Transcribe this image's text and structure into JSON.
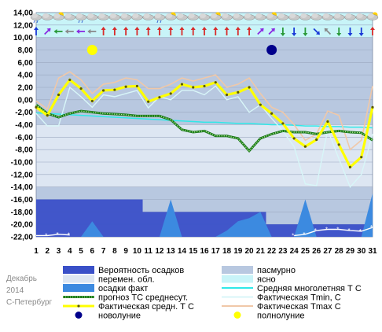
{
  "side_note": {
    "month": "Декабрь",
    "year": "2014",
    "city": "С-Петербург"
  },
  "legend": [
    {
      "key": "precip_probability",
      "label": "Вероятность осадков",
      "swatch": "rect",
      "color": "#3a50c8"
    },
    {
      "key": "overcast",
      "label": "пасмурно",
      "swatch": "rect",
      "color": "#b8c8e0"
    },
    {
      "key": "variable_cloud",
      "label": "перемен. обл.",
      "swatch": "rect",
      "color": "#dde6f2"
    },
    {
      "key": "clear",
      "label": "ясно",
      "swatch": "rect",
      "color": "#c8f4f8"
    },
    {
      "key": "precip_actual",
      "label": "осадки факт",
      "swatch": "rect",
      "color": "#3c8ae0"
    },
    {
      "key": "climate_mean",
      "label": "Средняя многолетняя Т С",
      "swatch": "line",
      "color": "#30e8e8"
    },
    {
      "key": "forecast_mean",
      "label": "прогноз ТС среднесут.",
      "swatch": "dotted",
      "color": "#1a7a1a"
    },
    {
      "key": "actual_tmin",
      "label": "Фактическая Tmin, С",
      "swatch": "line",
      "color": "#d8f6f8"
    },
    {
      "key": "actual_mean",
      "label": "Фактическая средн. Т С",
      "swatch": "yline",
      "color": "#ffff00"
    },
    {
      "key": "actual_tmax",
      "label": "Фактическая Tmax С",
      "swatch": "line",
      "color": "#f0c8a8"
    },
    {
      "key": "new_moon",
      "label": "новолуние",
      "swatch": "dot",
      "color": "#00008b"
    },
    {
      "key": "full_moon",
      "label": "полнолуние",
      "swatch": "dot",
      "color": "#ffff00"
    }
  ],
  "chart_data": {
    "type": "line",
    "x": [
      1,
      2,
      3,
      4,
      5,
      6,
      7,
      8,
      9,
      10,
      11,
      12,
      13,
      14,
      15,
      16,
      17,
      18,
      19,
      20,
      21,
      22,
      23,
      24,
      25,
      26,
      27,
      28,
      29,
      30,
      31
    ],
    "ylim": [
      -22,
      14
    ],
    "yticks": [
      14,
      12,
      10,
      8,
      6,
      4,
      2,
      0,
      -2,
      -4,
      -6,
      -8,
      -10,
      -12,
      -14,
      -16,
      -18,
      -20,
      -22
    ],
    "ytick_labels": [
      "14,00",
      "12,00",
      "10,00",
      "8,00",
      "6,00",
      "4,00",
      "2,00",
      "0,00",
      "-2,00",
      "-4,00",
      "-6,00",
      "-8,00",
      "-10,00",
      "-12,00",
      "-14,00",
      "-16,00",
      "-18,00",
      "-20,00",
      "-22,00"
    ],
    "series": [
      {
        "key": "actual_mean",
        "name": "Фактическая средн. Т С",
        "color": "#ffff00",
        "values": [
          -1.2,
          -2.5,
          0.8,
          3.2,
          1.8,
          -0.2,
          1.5,
          1.6,
          2.1,
          2.2,
          -0.3,
          0.4,
          1.0,
          2.5,
          2.0,
          2.2,
          2.8,
          0.8,
          1.2,
          2.0,
          -0.8,
          -2.2,
          -3.8,
          -6.2,
          -7.5,
          -6.4,
          -3.5,
          -7.2,
          -10.8,
          -9.2,
          -1.2
        ]
      },
      {
        "key": "actual_tmax",
        "name": "Фактическая Tmax С",
        "color": "#f0c8a8",
        "values": [
          -0.2,
          -1.5,
          3.5,
          4.5,
          3.2,
          1.0,
          2.5,
          2.8,
          3.5,
          3.2,
          1.8,
          1.8,
          2.5,
          3.5,
          3.0,
          3.5,
          4.0,
          2.0,
          2.5,
          3.5,
          1.0,
          -1.2,
          -2.0,
          -4.0,
          -6.5,
          -5.5,
          -1.8,
          -2.5,
          -8.0,
          -6.5,
          2.2
        ]
      },
      {
        "key": "actual_tmin",
        "name": "Фактическая Tmin, С",
        "color": "#d8f6f8",
        "values": [
          -2.2,
          -4.2,
          -4.2,
          2.0,
          0.5,
          -1.2,
          0.8,
          0.5,
          1.0,
          1.5,
          -1.3,
          0.5,
          0.0,
          1.5,
          1.5,
          0.8,
          2.2,
          0.0,
          0.5,
          -2.0,
          -0.8,
          -3.0,
          -5.0,
          -7.5,
          -13.5,
          -13.8,
          -4.8,
          -9.5,
          -14.0,
          -12.0,
          -5.5
        ]
      },
      {
        "key": "climate_mean",
        "name": "Средняя многолетняя Т С",
        "color": "#30e8e8",
        "values": [
          -2.1,
          -2.2,
          -2.3,
          -2.4,
          -2.5,
          -2.6,
          -2.7,
          -2.8,
          -2.9,
          -3.0,
          -3.1,
          -3.2,
          -3.3,
          -3.4,
          -3.5,
          -3.6,
          -3.6,
          -3.7,
          -3.8,
          -3.8,
          -3.9,
          -4.0,
          -4.0,
          -4.1,
          -4.2,
          -4.2,
          -4.3,
          -4.3,
          -4.4,
          -4.4,
          -4.5
        ]
      },
      {
        "key": "forecast_mean",
        "name": "прогноз ТС среднесут.",
        "color": "#1a7a1a",
        "values": [
          -0.8,
          -2.2,
          -2.8,
          -2.2,
          -1.8,
          -2.0,
          -2.2,
          -2.3,
          -2.4,
          -2.6,
          -2.6,
          -2.6,
          -3.2,
          -4.8,
          -5.2,
          -5.0,
          -5.8,
          -5.8,
          -6.2,
          -8.2,
          -6.2,
          -5.5,
          -5.0,
          -5.2,
          -5.2,
          -5.5,
          -5.2,
          -5.0,
          -5.2,
          -5.3,
          -6.5
        ]
      },
      {
        "key": "precip_probability",
        "name": "Вероятность осадков",
        "color": "#3a50c8",
        "values": [
          -16,
          -16,
          -16,
          -16,
          -16,
          -16,
          -16,
          -16,
          -16,
          -16,
          -18,
          -18,
          -18,
          -18,
          -18,
          -18,
          -18,
          -18,
          -18,
          -18,
          -18,
          -20,
          -20,
          -20,
          -20,
          -20,
          -20,
          -20,
          -20,
          -20,
          -20
        ]
      },
      {
        "key": "precip_actual",
        "name": "осадки факт",
        "color": "#3c8ae0",
        "values": [
          -22,
          -22,
          -22,
          -22,
          -22,
          -19.5,
          -22,
          -22,
          -22,
          -22,
          -22,
          -22,
          -16,
          -22,
          -22,
          -22,
          -22,
          -21,
          -19.5,
          -19,
          -18,
          -22,
          -22,
          -22,
          -16,
          -22,
          -22,
          -22,
          -22,
          -22,
          -15
        ]
      },
      {
        "key": "snow_cover",
        "name": "",
        "color": "#ffffff",
        "values": [
          -21.8,
          -21.8,
          -21.6,
          -21.7,
          null,
          null,
          null,
          null,
          null,
          null,
          null,
          null,
          null,
          null,
          null,
          null,
          null,
          null,
          null,
          null,
          null,
          null,
          null,
          -21.8,
          -21.6,
          -21.0,
          -20.8,
          -20.8,
          -21.0,
          -21.1,
          -20.5
        ]
      }
    ],
    "cloud_bands": [
      {
        "from": -22,
        "to": -14,
        "type": "overcast"
      },
      {
        "from": -14,
        "to": -4,
        "type": "variable_cloud"
      },
      {
        "from": -4,
        "to": 10,
        "type": "overcast"
      },
      {
        "from": 10,
        "to": 14,
        "type": "clear"
      }
    ],
    "full_moon_day": 6,
    "new_moon_day": 22,
    "moon_level": 8
  },
  "weather_icons": [
    "cloud-rain-icon",
    "cloud-icon",
    "sun-cloud-icon",
    "cloud-icon",
    "cloud-rain-icon",
    "cloud-icon",
    "cloud-icon",
    "cloud-icon",
    "cloud-icon",
    "cloud-icon",
    "cloud-icon",
    "cloud-rain-icon",
    "sun-cloud-icon",
    "cloud-icon",
    "cloud-icon",
    "cloud-icon",
    "sun-cloud-icon",
    "cloud-icon",
    "cloud-icon",
    "cloud-icon",
    "cloud-icon",
    "sun-cloud-icon",
    "cloud-icon",
    "cloud-icon",
    "cloud-icon",
    "cloud-icon",
    "cloud-icon",
    "cloud-icon",
    "cloud-icon",
    "cloud-icon",
    "sun-cloud-icon"
  ],
  "wind_directions": [
    "S",
    "SW",
    "E",
    "E",
    "E",
    "E",
    "S",
    "S",
    "S",
    "S",
    "S",
    "S",
    "S",
    "S",
    "S",
    "S",
    "S",
    "S",
    "S",
    "S",
    "SW",
    "SW",
    "N",
    "N",
    "N",
    "NW",
    "SE",
    "N",
    "N",
    "N",
    "S"
  ],
  "wind_colors": [
    "#1a3ad8",
    "#8a2be2",
    "#2a9a3a",
    "#8a8a8a",
    "#8a2be2",
    "#8a8a8a",
    "#d82a2a",
    "#d82a2a",
    "#d82a2a",
    "#d82a2a",
    "#d82a2a",
    "#d82a2a",
    "#d82a2a",
    "#d82a2a",
    "#d82a2a",
    "#d82a2a",
    "#d82a2a",
    "#d82a2a",
    "#d82a2a",
    "#d82a2a",
    "#8a2be2",
    "#8a2be2",
    "#2a9a3a",
    "#1a3ad8",
    "#2a9a3a",
    "#1a3ad8",
    "#8a8a8a",
    "#2a9a3a",
    "#1a3ad8",
    "#1a3ad8",
    "#d82a2a"
  ]
}
